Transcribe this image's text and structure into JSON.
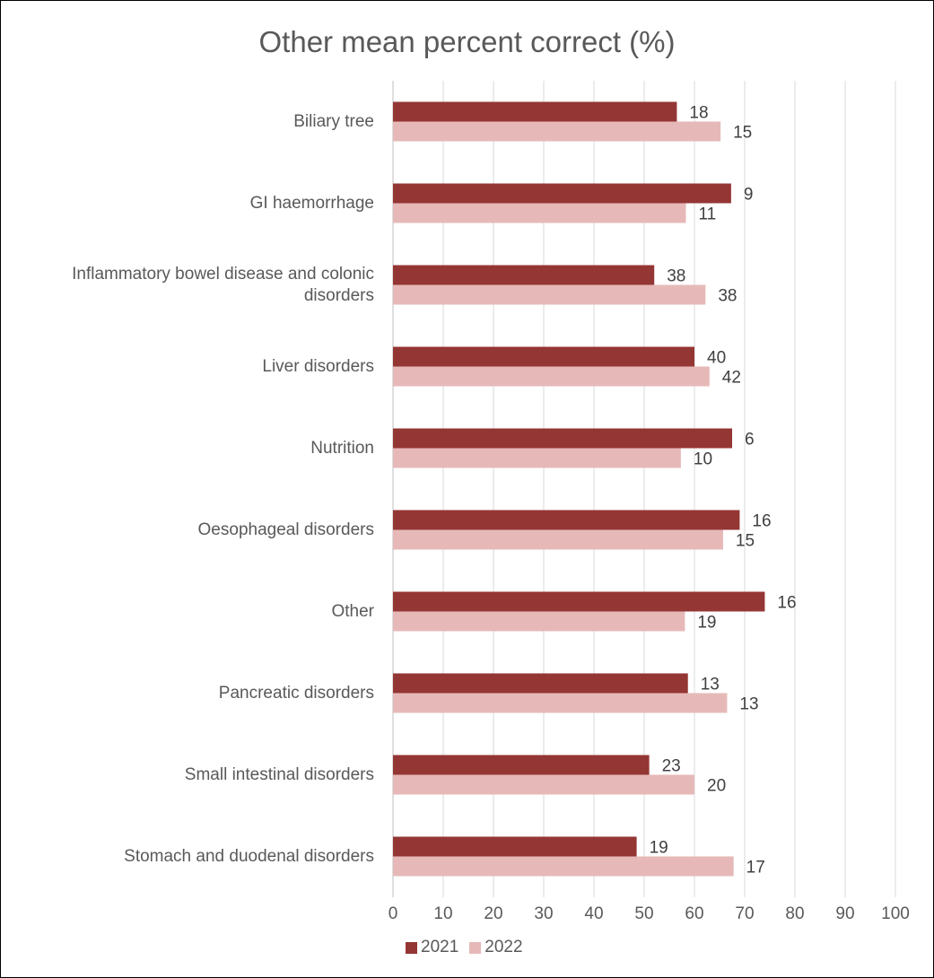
{
  "chart_data": {
    "type": "bar",
    "orientation": "horizontal",
    "title": "Other mean percent correct (%)",
    "categories": [
      "Biliary tree",
      "GI haemorrhage",
      "Inflammatory bowel disease and colonic disorders",
      "Liver disorders",
      "Nutrition",
      "Oesophageal disorders",
      "Other",
      "Pancreatic disorders",
      "Small intestinal disorders",
      "Stomach and duodenal disorders"
    ],
    "series": [
      {
        "name": "2021",
        "color": "#943634",
        "values": [
          56.5,
          67.3,
          52,
          60,
          67.5,
          69,
          74,
          58.7,
          51,
          48.5
        ],
        "data_labels": [
          "18",
          "9",
          "38",
          "40",
          "6",
          "16",
          "16",
          "13",
          "23",
          "19"
        ]
      },
      {
        "name": "2022",
        "color": "#E6B9B8",
        "values": [
          65.2,
          58.3,
          62.2,
          63,
          57.3,
          65.7,
          58.1,
          66.5,
          60,
          67.8
        ],
        "data_labels": [
          "15",
          "11",
          "38",
          "42",
          "10",
          "15",
          "19",
          "13",
          "20",
          "17"
        ]
      }
    ],
    "xlim": [
      0,
      100
    ],
    "xticks": [
      "0",
      "10",
      "20",
      "30",
      "40",
      "50",
      "60",
      "70",
      "80",
      "90",
      "100"
    ],
    "grid": "vertical",
    "legend": "bottom"
  }
}
